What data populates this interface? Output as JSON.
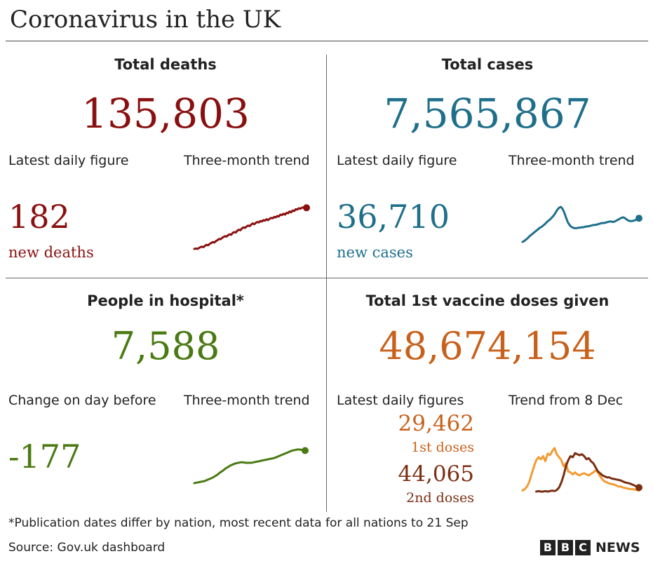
{
  "title": "Coronavirus in the UK",
  "colors": {
    "deaths": "#8a1010",
    "cases": "#1f6f8b",
    "hospital": "#4a7a12",
    "vaccine": "#c8611c",
    "dose1": "#f29b33",
    "dose2": "#7a2e12"
  },
  "panels": {
    "deaths": {
      "heading": "Total deaths",
      "total": "135,803",
      "left_label": "Latest daily figure",
      "right_label": "Three-month trend",
      "latest": "182",
      "latest_caption": "new deaths"
    },
    "cases": {
      "heading": "Total cases",
      "total": "7,565,867",
      "left_label": "Latest daily figure",
      "right_label": "Three-month trend",
      "latest": "36,710",
      "latest_caption": "new cases"
    },
    "hospital": {
      "heading": "People in hospital*",
      "total": "7,588",
      "left_label": "Change on day before",
      "right_label": "Three-month trend",
      "latest": "-177"
    },
    "vaccine": {
      "heading": "Total 1st vaccine doses given",
      "total": "48,674,154",
      "left_label": "Latest daily figures",
      "right_label": "Trend from 8 Dec",
      "dose1_value": "29,462",
      "dose1_caption": "1st doses",
      "dose2_value": "44,065",
      "dose2_caption": "2nd doses"
    }
  },
  "footnote": "*Publication dates differ by nation, most recent data for all nations to 21 Sep",
  "source": "Source: Gov.uk dashboard",
  "brand": {
    "letters": [
      "B",
      "B",
      "C"
    ],
    "word": "NEWS"
  },
  "chart_data": [
    {
      "type": "line",
      "name": "deaths-trend",
      "series": [
        {
          "values": [
            9,
            10,
            9,
            11,
            13,
            14,
            13,
            16,
            18,
            17,
            20,
            22,
            24,
            23,
            26,
            28,
            31,
            30,
            33,
            35,
            37,
            36,
            39,
            41,
            40,
            44,
            46,
            45,
            49,
            51,
            50,
            54,
            56,
            55,
            58,
            60,
            59,
            62,
            65,
            63,
            66,
            68,
            67,
            70,
            69,
            72,
            71,
            74,
            72,
            75,
            77,
            76,
            79,
            78,
            81,
            80,
            84,
            83,
            86,
            84,
            88,
            87,
            91,
            89,
            93,
            92,
            96,
            95,
            98,
            97,
            99,
            100,
            101,
            99
          ]
        }
      ]
    },
    {
      "type": "line",
      "name": "cases-trend",
      "series": [
        {
          "values": [
            10,
            12,
            15,
            18,
            22,
            25,
            28,
            31,
            34,
            37,
            40,
            42,
            45,
            48,
            52,
            55,
            58,
            62,
            66,
            72,
            78,
            82,
            84,
            80,
            72,
            62,
            52,
            46,
            42,
            40,
            39,
            39,
            40,
            40,
            41,
            41,
            42,
            43,
            43,
            44,
            45,
            46,
            46,
            47,
            48,
            49,
            50,
            50,
            51,
            52,
            53,
            53,
            52,
            53,
            55,
            57,
            59,
            61,
            62,
            60,
            57,
            55,
            54,
            54,
            55,
            56,
            58,
            60
          ]
        }
      ]
    },
    {
      "type": "line",
      "name": "hospital-trend",
      "series": [
        {
          "values": [
            5,
            6,
            7,
            8,
            9,
            11,
            13,
            15,
            18,
            21,
            25,
            28,
            32,
            35,
            38,
            40,
            42,
            43,
            44,
            44,
            43,
            43,
            43,
            44,
            45,
            46,
            47,
            48,
            49,
            50,
            51,
            52,
            54,
            56,
            58,
            60,
            62,
            64,
            66,
            67,
            68,
            68,
            67,
            66
          ]
        }
      ]
    },
    {
      "type": "line",
      "name": "vaccine-trend",
      "series": [
        {
          "name": "1st doses",
          "values": [
            12,
            15,
            20,
            30,
            45,
            60,
            72,
            78,
            74,
            80,
            70,
            85,
            82,
            90,
            96,
            84,
            78,
            72,
            60,
            66,
            50,
            48,
            44,
            48,
            44,
            42,
            45,
            46,
            44,
            42,
            45,
            48,
            52,
            48,
            40,
            34,
            30,
            28,
            26,
            25,
            24,
            22,
            20,
            20,
            18,
            17,
            16,
            15,
            15,
            14,
            13,
            12
          ]
        },
        {
          "name": "2nd doses",
          "values": [
            null,
            null,
            null,
            null,
            null,
            null,
            10,
            11,
            10,
            10,
            11,
            10,
            11,
            12,
            11,
            13,
            18,
            28,
            42,
            60,
            72,
            80,
            78,
            86,
            84,
            82,
            84,
            80,
            74,
            76,
            70,
            66,
            58,
            50,
            46,
            42,
            40,
            38,
            38,
            36,
            35,
            34,
            33,
            32,
            30,
            28,
            27,
            26,
            24,
            22,
            20,
            18
          ]
        }
      ]
    }
  ]
}
